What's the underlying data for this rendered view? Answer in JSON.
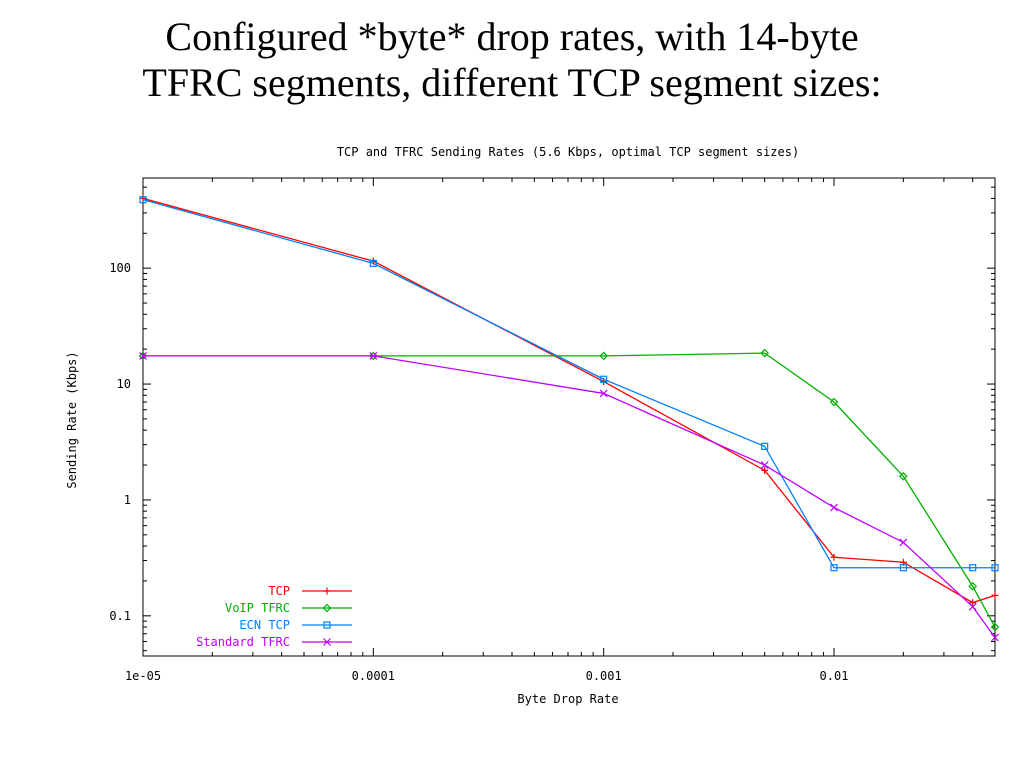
{
  "slide": {
    "title_line1": "Configured *byte* drop rates, with 14-byte",
    "title_line2": "TFRC segments, different TCP segment sizes:"
  },
  "chart_data": {
    "type": "line",
    "title": "TCP and TFRC Sending Rates (5.6 Kbps, optimal TCP segment sizes)",
    "xlabel": "Byte Drop Rate",
    "ylabel": "Sending Rate (Kbps)",
    "x_scale": "log",
    "y_scale": "log",
    "xlim": [
      1e-05,
      0.05
    ],
    "ylim": [
      0.045,
      600
    ],
    "x_ticks": [
      {
        "value": 1e-05,
        "label": "1e-05"
      },
      {
        "value": 0.0001,
        "label": "0.0001"
      },
      {
        "value": 0.001,
        "label": "0.001"
      },
      {
        "value": 0.01,
        "label": "0.01"
      }
    ],
    "y_ticks": [
      {
        "value": 0.1,
        "label": "0.1"
      },
      {
        "value": 1,
        "label": "1"
      },
      {
        "value": 10,
        "label": "10"
      },
      {
        "value": 100,
        "label": "100"
      }
    ],
    "grid": false,
    "legend_position": "bottom-left",
    "series": [
      {
        "name": "TCP",
        "color": "#ff0000",
        "marker": "plus",
        "points": [
          [
            1e-05,
            400
          ],
          [
            0.0001,
            115
          ],
          [
            0.001,
            10.5
          ],
          [
            0.005,
            1.8
          ],
          [
            0.01,
            0.32
          ],
          [
            0.02,
            0.29
          ],
          [
            0.04,
            0.13
          ],
          [
            0.05,
            0.15
          ]
        ]
      },
      {
        "name": "VoIP TFRC",
        "color": "#00b000",
        "marker": "diamond",
        "points": [
          [
            1e-05,
            17.5
          ],
          [
            0.0001,
            17.5
          ],
          [
            0.001,
            17.5
          ],
          [
            0.005,
            18.5
          ],
          [
            0.01,
            7.0
          ],
          [
            0.02,
            1.6
          ],
          [
            0.04,
            0.18
          ],
          [
            0.05,
            0.08
          ]
        ]
      },
      {
        "name": "ECN TCP",
        "color": "#0080ff",
        "marker": "square",
        "points": [
          [
            1e-05,
            390
          ],
          [
            0.0001,
            110
          ],
          [
            0.001,
            11.0
          ],
          [
            0.005,
            2.9
          ],
          [
            0.01,
            0.26
          ],
          [
            0.02,
            0.26
          ],
          [
            0.04,
            0.26
          ],
          [
            0.05,
            0.26
          ]
        ]
      },
      {
        "name": "Standard TFRC",
        "color": "#c000ff",
        "marker": "x",
        "points": [
          [
            1e-05,
            17.5
          ],
          [
            0.0001,
            17.5
          ],
          [
            0.001,
            8.3
          ],
          [
            0.005,
            2.0
          ],
          [
            0.01,
            0.86
          ],
          [
            0.02,
            0.43
          ],
          [
            0.04,
            0.12
          ],
          [
            0.05,
            0.065
          ]
        ]
      }
    ]
  }
}
